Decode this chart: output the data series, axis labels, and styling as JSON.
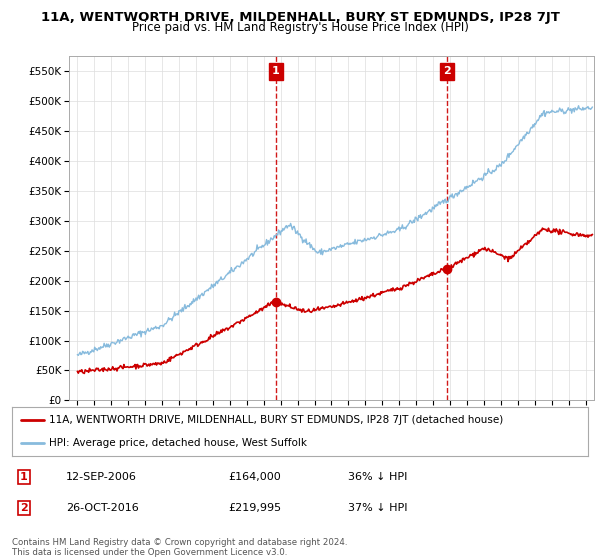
{
  "title": "11A, WENTWORTH DRIVE, MILDENHALL, BURY ST EDMUNDS, IP28 7JT",
  "subtitle": "Price paid vs. HM Land Registry's House Price Index (HPI)",
  "ylim": [
    0,
    575000
  ],
  "xlim_start": 1994.5,
  "xlim_end": 2025.5,
  "yticks": [
    0,
    50000,
    100000,
    150000,
    200000,
    250000,
    300000,
    350000,
    400000,
    450000,
    500000,
    550000
  ],
  "ytick_labels": [
    "£0",
    "£50K",
    "£100K",
    "£150K",
    "£200K",
    "£250K",
    "£300K",
    "£350K",
    "£400K",
    "£450K",
    "£500K",
    "£550K"
  ],
  "sale1_date": 2006.7,
  "sale1_price": 164000,
  "sale1_label": "1",
  "sale2_date": 2016.82,
  "sale2_price": 219995,
  "sale2_label": "2",
  "line_color_property": "#cc0000",
  "line_color_hpi": "#88bbdd",
  "vline_color": "#cc0000",
  "annotation_box_color": "#cc0000",
  "grid_color": "#dddddd",
  "legend_label_property": "11A, WENTWORTH DRIVE, MILDENHALL, BURY ST EDMUNDS, IP28 7JT (detached house)",
  "legend_label_hpi": "HPI: Average price, detached house, West Suffolk",
  "table_rows": [
    {
      "num": "1",
      "date": "12-SEP-2006",
      "price": "£164,000",
      "change": "36% ↓ HPI"
    },
    {
      "num": "2",
      "date": "26-OCT-2016",
      "price": "£219,995",
      "change": "37% ↓ HPI"
    }
  ],
  "footer": "Contains HM Land Registry data © Crown copyright and database right 2024.\nThis data is licensed under the Open Government Licence v3.0."
}
